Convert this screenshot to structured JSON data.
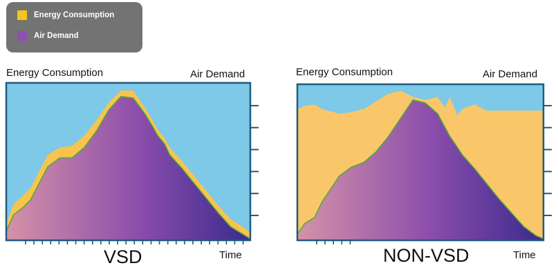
{
  "legend": {
    "items": [
      {
        "label": "Energy Consumption",
        "color": "#f5c518"
      },
      {
        "label": "Air Demand",
        "color": "#8d4fb0"
      }
    ]
  },
  "colors": {
    "sky": "#7ec8e8",
    "energy_vsd": "#f7c54d",
    "energy_nonvsd": "#f9c76a",
    "demand_start": "#d592a8",
    "demand_mid": "#8a4dab",
    "demand_end": "#3a2a8e",
    "outline": "#55a83a",
    "frame": "#1f5a80"
  },
  "chart_data": [
    {
      "type": "area",
      "title": "VSD",
      "y_left_label": "Energy Consumption",
      "y_right_label": "Air Demand",
      "xlabel": "Time",
      "x": [
        0,
        3,
        7,
        10,
        17,
        22,
        27,
        32,
        37,
        42,
        47,
        52,
        57,
        60,
        62,
        65,
        67,
        72,
        77,
        82,
        87,
        92,
        97,
        100
      ],
      "series": [
        {
          "name": "Energy Consumption",
          "values": [
            0.11,
            0.24,
            0.3,
            0.35,
            0.57,
            0.62,
            0.63,
            0.7,
            0.8,
            0.92,
            1.0,
            1.0,
            0.88,
            0.8,
            0.74,
            0.68,
            0.62,
            0.53,
            0.43,
            0.33,
            0.23,
            0.14,
            0.09,
            0.05
          ]
        },
        {
          "name": "Air Demand",
          "values": [
            0.06,
            0.17,
            0.22,
            0.27,
            0.49,
            0.55,
            0.55,
            0.62,
            0.73,
            0.87,
            0.96,
            0.95,
            0.84,
            0.76,
            0.7,
            0.64,
            0.57,
            0.48,
            0.38,
            0.28,
            0.18,
            0.09,
            0.04,
            0.01
          ]
        }
      ]
    },
    {
      "type": "area",
      "title": "NON-VSD",
      "y_left_label": "Energy Consumption",
      "y_right_label": "Air Demand",
      "xlabel": "Time",
      "x": [
        0,
        3,
        7,
        10,
        17,
        22,
        27,
        32,
        37,
        42,
        47,
        52,
        57,
        60,
        62,
        65,
        67,
        72,
        77,
        82,
        87,
        92,
        97,
        100
      ],
      "series": [
        {
          "name": "Energy Consumption",
          "values": [
            0.86,
            0.88,
            0.89,
            0.86,
            0.83,
            0.84,
            0.86,
            0.91,
            0.96,
            0.98,
            0.94,
            0.92,
            0.94,
            0.87,
            0.94,
            0.82,
            0.86,
            0.89,
            0.85,
            0.85,
            0.85,
            0.85,
            0.85,
            0.85
          ]
        },
        {
          "name": "Air Demand",
          "values": [
            0.04,
            0.11,
            0.15,
            0.25,
            0.42,
            0.48,
            0.51,
            0.58,
            0.68,
            0.8,
            0.92,
            0.9,
            0.83,
            0.74,
            0.68,
            0.61,
            0.56,
            0.47,
            0.37,
            0.27,
            0.18,
            0.09,
            0.03,
            0.01
          ]
        }
      ]
    }
  ]
}
